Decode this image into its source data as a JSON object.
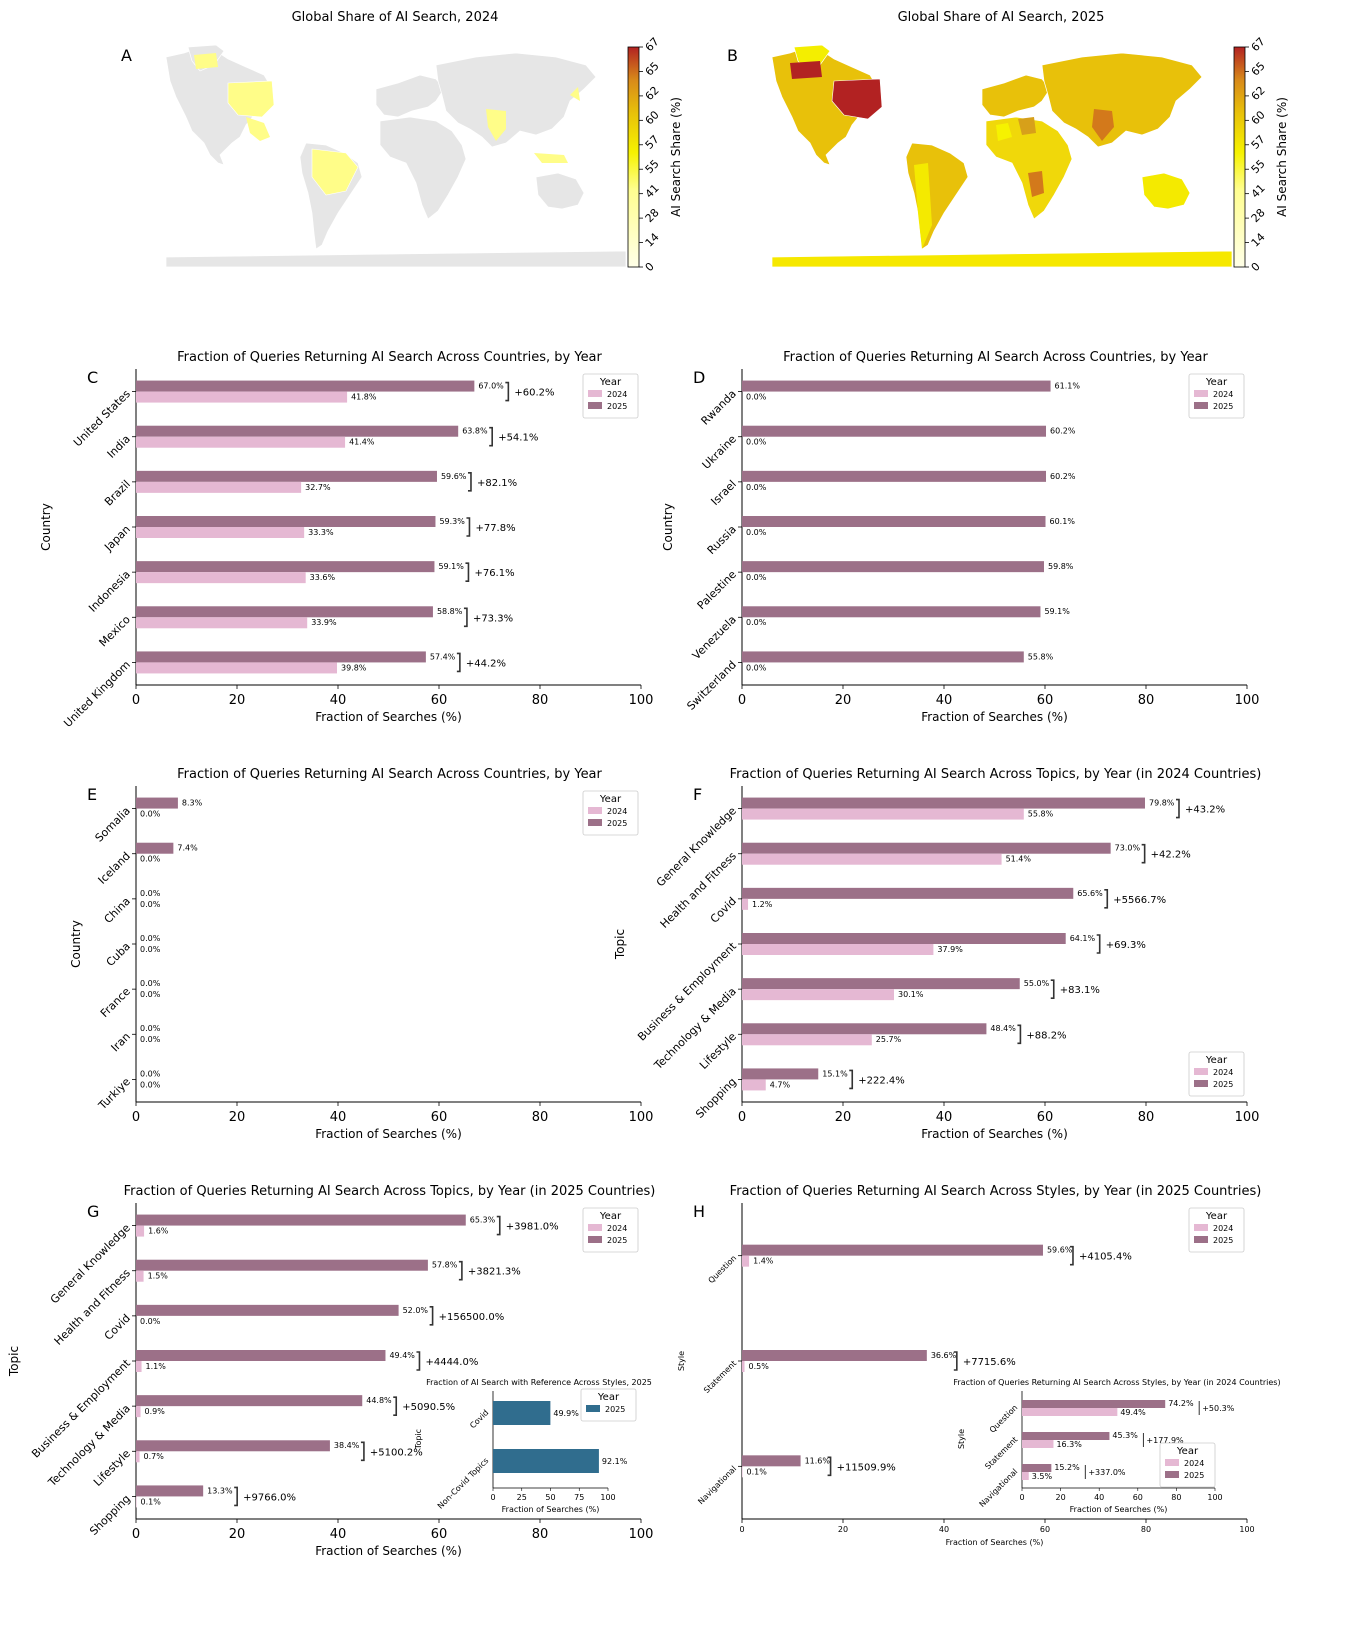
{
  "colors": {
    "c2024": "#e5b8d3",
    "c2025": "#9c7088",
    "inset_blue": "#306d8e",
    "land_gray": "#e6e6e6",
    "ann": "#333333"
  },
  "maps": [
    {
      "label": "A",
      "title": "Global Share of AI Search, 2024",
      "cbar_label": "AI Search Share (%)",
      "cbar_ticks": [
        "0",
        "14",
        "28",
        "41",
        "55",
        "57",
        "60",
        "62",
        "65",
        "67"
      ]
    },
    {
      "label": "B",
      "title": "Global Share of AI Search, 2025",
      "cbar_label": "AI Search Share (%)",
      "cbar_ticks": [
        "0",
        "14",
        "28",
        "41",
        "55",
        "57",
        "60",
        "62",
        "65",
        "67"
      ]
    }
  ],
  "chart_data": [
    {
      "panel": "C",
      "type": "bar",
      "orientation": "horizontal",
      "title": "Fraction of Queries Returning AI Search Across Countries, by Year",
      "xlabel": "Fraction of Searches (%)",
      "ylabel": "Country",
      "xlim": [
        0,
        100
      ],
      "xticks": [
        "0",
        "20",
        "40",
        "60",
        "80",
        "100"
      ],
      "legend_title": "Year",
      "legend_loc": "top-right",
      "categories": [
        "United States",
        "India",
        "Brazil",
        "Japan",
        "Indonesia",
        "Mexico",
        "United Kingdom"
      ],
      "series": [
        {
          "name": "2024",
          "values": [
            41.8,
            41.4,
            32.7,
            33.3,
            33.6,
            33.9,
            39.8
          ],
          "labels": [
            "41.8%",
            "41.4%",
            "32.7%",
            "33.3%",
            "33.6%",
            "33.9%",
            "39.8%"
          ]
        },
        {
          "name": "2025",
          "values": [
            67.0,
            63.8,
            59.6,
            59.3,
            59.1,
            58.8,
            57.4
          ],
          "labels": [
            "67.0%",
            "63.8%",
            "59.6%",
            "59.3%",
            "59.1%",
            "58.8%",
            "57.4%"
          ]
        }
      ],
      "changes": [
        "+60.2%",
        "+54.1%",
        "+82.1%",
        "+77.8%",
        "+76.1%",
        "+73.3%",
        "+44.2%"
      ]
    },
    {
      "panel": "D",
      "type": "bar",
      "orientation": "horizontal",
      "title": "Fraction of Queries Returning AI Search Across Countries, by Year",
      "xlabel": "Fraction of Searches (%)",
      "ylabel": "Country",
      "xlim": [
        0,
        100
      ],
      "xticks": [
        "0",
        "20",
        "40",
        "60",
        "80",
        "100"
      ],
      "legend_title": "Year",
      "legend_loc": "top-right",
      "categories": [
        "Rwanda",
        "Ukraine",
        "Israel",
        "Russia",
        "Palestine",
        "Venezuela",
        "Switzerland"
      ],
      "series": [
        {
          "name": "2024",
          "values": [
            0,
            0,
            0,
            0,
            0,
            0,
            0
          ],
          "labels": [
            "0.0%",
            "0.0%",
            "0.0%",
            "0.0%",
            "0.0%",
            "0.0%",
            "0.0%"
          ]
        },
        {
          "name": "2025",
          "values": [
            61.1,
            60.2,
            60.2,
            60.1,
            59.8,
            59.1,
            55.8
          ],
          "labels": [
            "61.1%",
            "60.2%",
            "60.2%",
            "60.1%",
            "59.8%",
            "59.1%",
            "55.8%"
          ]
        }
      ]
    },
    {
      "panel": "E",
      "type": "bar",
      "orientation": "horizontal",
      "title": "Fraction of Queries Returning AI Search Across Countries, by Year",
      "xlabel": "Fraction of Searches (%)",
      "ylabel": "Country",
      "xlim": [
        0,
        100
      ],
      "xticks": [
        "0",
        "20",
        "40",
        "60",
        "80",
        "100"
      ],
      "legend_title": "Year",
      "legend_loc": "top-right",
      "categories": [
        "Somalia",
        "Iceland",
        "China",
        "Cuba",
        "France",
        "Iran",
        "Turkiye"
      ],
      "series": [
        {
          "name": "2024",
          "values": [
            0,
            0,
            0,
            0,
            0,
            0,
            0
          ],
          "labels": [
            "0.0%",
            "0.0%",
            "0.0%",
            "0.0%",
            "0.0%",
            "0.0%",
            "0.0%"
          ]
        },
        {
          "name": "2025",
          "values": [
            8.3,
            7.4,
            0,
            0,
            0,
            0,
            0
          ],
          "labels": [
            "8.3%",
            "7.4%",
            "0.0%",
            "0.0%",
            "0.0%",
            "0.0%",
            "0.0%"
          ]
        }
      ]
    },
    {
      "panel": "F",
      "type": "bar",
      "orientation": "horizontal",
      "title": "Fraction of Queries Returning AI Search Across Topics, by Year (in 2024 Countries)",
      "xlabel": "Fraction of Searches (%)",
      "ylabel": "Topic",
      "xlim": [
        0,
        100
      ],
      "xticks": [
        "0",
        "20",
        "40",
        "60",
        "80",
        "100"
      ],
      "legend_title": "Year",
      "legend_loc": "bottom-right",
      "categories": [
        "General Knowledge",
        "Health and Fitness",
        "Covid",
        "Business & Employment",
        "Technology & Media",
        "Lifestyle",
        "Shopping"
      ],
      "series": [
        {
          "name": "2024",
          "values": [
            55.8,
            51.4,
            1.2,
            37.9,
            30.1,
            25.7,
            4.7
          ],
          "labels": [
            "55.8%",
            "51.4%",
            "1.2%",
            "37.9%",
            "30.1%",
            "25.7%",
            "4.7%"
          ]
        },
        {
          "name": "2025",
          "values": [
            79.8,
            73.0,
            65.6,
            64.1,
            55.0,
            48.4,
            15.1
          ],
          "labels": [
            "79.8%",
            "73.0%",
            "65.6%",
            "64.1%",
            "55.0%",
            "48.4%",
            "15.1%"
          ]
        }
      ],
      "changes": [
        "+43.2%",
        "+42.2%",
        "+5566.7%",
        "+69.3%",
        "+83.1%",
        "+88.2%",
        "+222.4%"
      ]
    },
    {
      "panel": "G",
      "type": "bar",
      "orientation": "horizontal",
      "title": "Fraction of Queries Returning AI Search Across Topics, by Year (in 2025 Countries)",
      "xlabel": "Fraction of Searches (%)",
      "ylabel": "Topic",
      "xlim": [
        0,
        100
      ],
      "xticks": [
        "0",
        "20",
        "40",
        "60",
        "80",
        "100"
      ],
      "legend_title": "Year",
      "legend_loc": "top-right",
      "categories": [
        "General Knowledge",
        "Health and Fitness",
        "Covid",
        "Business & Employment",
        "Technology & Media",
        "Lifestyle",
        "Shopping"
      ],
      "series": [
        {
          "name": "2024",
          "values": [
            1.6,
            1.5,
            0.0,
            1.1,
            0.9,
            0.7,
            0.1
          ],
          "labels": [
            "1.6%",
            "1.5%",
            "0.0%",
            "1.1%",
            "0.9%",
            "0.7%",
            "0.1%"
          ]
        },
        {
          "name": "2025",
          "values": [
            65.3,
            57.8,
            52.0,
            49.4,
            44.8,
            38.4,
            13.3
          ],
          "labels": [
            "65.3%",
            "57.8%",
            "52.0%",
            "49.4%",
            "44.8%",
            "38.4%",
            "13.3%"
          ]
        }
      ],
      "changes": [
        "+3981.0%",
        "+3821.3%",
        "+156500.0%",
        "+4444.0%",
        "+5090.5%",
        "+5100.2%",
        "+9766.0%"
      ],
      "inset": {
        "title": "Fraction of AI Search with Reference Across Styles, 2025",
        "xlabel": "Fraction of Searches (%)",
        "ylabel": "Topic",
        "xticks": [
          "0",
          "25",
          "50",
          "75",
          "100"
        ],
        "legend_title": "Year",
        "legend_entry": "2025",
        "categories": [
          "Covid",
          "Non-Covid Topics"
        ],
        "values": [
          49.9,
          92.1
        ],
        "labels": [
          "49.9%",
          "92.1%"
        ]
      }
    },
    {
      "panel": "H",
      "type": "bar",
      "orientation": "horizontal",
      "title": "Fraction of Queries Returning AI Search Across Styles, by Year (in 2025 Countries)",
      "xlabel": "Fraction of Searches (%)",
      "ylabel": "Style",
      "xlim": [
        0,
        100
      ],
      "xticks": [
        "0",
        "20",
        "40",
        "60",
        "80",
        "100"
      ],
      "legend_title": "Year",
      "legend_loc": "top-right",
      "categories": [
        "Question",
        "Statement",
        "Navigational"
      ],
      "series": [
        {
          "name": "2024",
          "values": [
            1.4,
            0.5,
            0.1
          ],
          "labels": [
            "1.4%",
            "0.5%",
            "0.1%"
          ]
        },
        {
          "name": "2025",
          "values": [
            59.6,
            36.6,
            11.6
          ],
          "labels": [
            "59.6%",
            "36.6%",
            "11.6%"
          ]
        }
      ],
      "changes": [
        "+4105.4%",
        "+7715.6%",
        "+11509.9%"
      ],
      "inset": {
        "title": "Fraction of Queries Returning AI Search Across Styles, by Year (in 2024 Countries)",
        "xlabel": "Fraction of Searches (%)",
        "ylabel": "Style",
        "xticks": [
          "0",
          "20",
          "40",
          "60",
          "80",
          "100"
        ],
        "legend_title": "Year",
        "categories": [
          "Question",
          "Statement",
          "Navigational"
        ],
        "series": [
          {
            "name": "2024",
            "values": [
              49.4,
              16.3,
              3.5
            ],
            "labels": [
              "49.4%",
              "16.3%",
              "3.5%"
            ]
          },
          {
            "name": "2025",
            "values": [
              74.2,
              45.3,
              15.2
            ],
            "labels": [
              "74.2%",
              "45.3%",
              "15.2%"
            ]
          }
        ],
        "changes": [
          "+50.3%",
          "+177.9%",
          "+337.0%"
        ]
      }
    }
  ]
}
